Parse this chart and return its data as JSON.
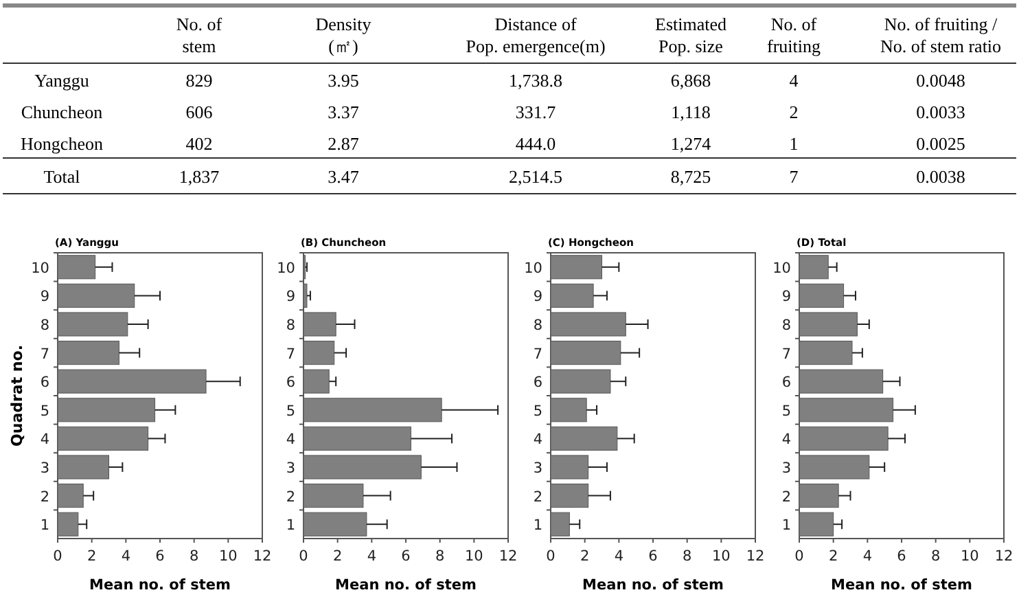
{
  "chart_data": [
    {
      "type": "other",
      "annotations": [
        "No. of\nstem",
        "Density\n(㎡)",
        "Distance of\nPop. emergence(m)",
        "Estimated\nPop. size",
        "No. of\nfruiting",
        "No. of fruiting /\nNo. of stem ratio",
        "Yanggu",
        "829",
        "3.95",
        "1,738.8",
        "6,868",
        "4",
        "0.0048",
        "Chuncheon",
        "606",
        "3.37",
        "331.7",
        "1,118",
        "2",
        "0.0033",
        "Hongcheon",
        "402",
        "2.87",
        "444.0",
        "1,274",
        "1",
        "0.0025",
        "Total",
        "1,837",
        "3.47",
        "2,514.5",
        "8,725",
        "7",
        "0.0038"
      ]
    },
    {
      "type": "bar",
      "orientation": "horizontal",
      "title": "(A) Yanggu",
      "xlabel": "Mean no. of stem",
      "ylabel": "Quadrat no.",
      "categories": [
        "10",
        "9",
        "8",
        "7",
        "6",
        "5",
        "4",
        "3",
        "2",
        "1"
      ],
      "color": "#808080",
      "values": [
        2.2,
        4.5,
        4.1,
        3.6,
        8.7,
        5.7,
        5.3,
        3.0,
        1.5,
        1.2
      ],
      "errors": [
        [
          2.2,
          3.2
        ],
        [
          4.5,
          6.0
        ],
        [
          4.1,
          5.3
        ],
        [
          3.6,
          4.8
        ],
        [
          8.7,
          10.7
        ],
        [
          5.7,
          6.9
        ],
        [
          5.3,
          6.3
        ],
        [
          3.0,
          3.8
        ],
        [
          1.5,
          2.1
        ],
        [
          1.2,
          1.7
        ]
      ],
      "xlim": [
        0,
        12
      ],
      "xticks": [
        0,
        2,
        4,
        6,
        8,
        10,
        12
      ]
    },
    {
      "type": "bar",
      "orientation": "horizontal",
      "title": "(B) Chuncheon",
      "xlabel": "Mean no. of stem",
      "categories": [
        "10",
        "9",
        "8",
        "7",
        "6",
        "5",
        "4",
        "3",
        "2",
        "1"
      ],
      "color": "#808080",
      "values": [
        0.1,
        0.2,
        1.9,
        1.8,
        1.5,
        8.1,
        6.3,
        6.9,
        3.5,
        3.7
      ],
      "errors": [
        [
          0.1,
          0.2
        ],
        [
          0.2,
          0.4
        ],
        [
          1.9,
          3.0
        ],
        [
          1.8,
          2.5
        ],
        [
          1.5,
          1.9
        ],
        [
          8.1,
          11.4
        ],
        [
          6.3,
          8.7
        ],
        [
          6.9,
          9.0
        ],
        [
          3.5,
          5.1
        ],
        [
          3.7,
          4.9
        ]
      ],
      "xlim": [
        0,
        12
      ],
      "xticks": [
        0,
        2,
        4,
        6,
        8,
        10,
        12
      ]
    },
    {
      "type": "bar",
      "orientation": "horizontal",
      "title": "(C) Hongcheon",
      "xlabel": "Mean no. of stem",
      "categories": [
        "10",
        "9",
        "8",
        "7",
        "6",
        "5",
        "4",
        "3",
        "2",
        "1"
      ],
      "color": "#808080",
      "values": [
        3.0,
        2.5,
        4.4,
        4.1,
        3.5,
        2.1,
        3.9,
        2.2,
        2.2,
        1.1
      ],
      "errors": [
        [
          3.0,
          4.0
        ],
        [
          2.5,
          3.3
        ],
        [
          4.4,
          5.7
        ],
        [
          4.1,
          5.2
        ],
        [
          3.5,
          4.4
        ],
        [
          2.1,
          2.7
        ],
        [
          3.9,
          4.9
        ],
        [
          2.2,
          3.3
        ],
        [
          2.2,
          3.5
        ],
        [
          1.1,
          1.7
        ]
      ],
      "xlim": [
        0,
        12
      ],
      "xticks": [
        0,
        2,
        4,
        6,
        8,
        10,
        12
      ]
    },
    {
      "type": "bar",
      "orientation": "horizontal",
      "title": "(D) Total",
      "xlabel": "Mean no. of stem",
      "categories": [
        "10",
        "9",
        "8",
        "7",
        "6",
        "5",
        "4",
        "3",
        "2",
        "1"
      ],
      "color": "#808080",
      "values": [
        1.7,
        2.6,
        3.4,
        3.1,
        4.9,
        5.5,
        5.2,
        4.1,
        2.3,
        2.0
      ],
      "errors": [
        [
          1.7,
          2.2
        ],
        [
          2.6,
          3.3
        ],
        [
          3.4,
          4.1
        ],
        [
          3.1,
          3.7
        ],
        [
          4.9,
          5.9
        ],
        [
          5.5,
          6.8
        ],
        [
          5.2,
          6.2
        ],
        [
          4.1,
          5.0
        ],
        [
          2.3,
          3.0
        ],
        [
          2.0,
          2.5
        ]
      ],
      "xlim": [
        0,
        12
      ],
      "xticks": [
        0,
        2,
        4,
        6,
        8,
        10,
        12
      ]
    }
  ]
}
